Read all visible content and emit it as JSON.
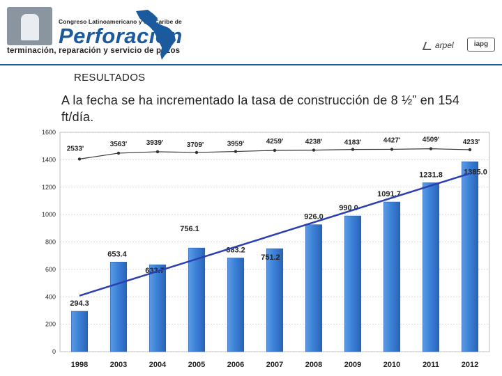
{
  "header": {
    "conference": "Congreso Latinoamericano y del Caribe de",
    "brand": "Perforación",
    "subtitle": "terminación, reparación y servicio de pozos",
    "sponsor_1": "arpel",
    "sponsor_2": "iapg"
  },
  "section_title": "RESULTADOS",
  "body_text": "A la fecha se ha incrementado la tasa de construcción de 8 ½” en 154 ft/día.",
  "colors": {
    "bar": "#3a7fd5",
    "trend": "#2a3fb0",
    "top_line": "#333333",
    "brand": "#1b5a9d"
  },
  "chart_data": {
    "type": "bar",
    "categories": [
      "1998",
      "2003",
      "2004",
      "2005",
      "2006",
      "2007",
      "2008",
      "2009",
      "2010",
      "2011",
      "2012"
    ],
    "values": [
      294.3,
      653.4,
      633.7,
      756.1,
      683.2,
      751.2,
      926.0,
      990.0,
      1091.7,
      1231.8,
      1385.0
    ],
    "value_labels": [
      "294.3",
      "653.4",
      "633.7",
      "756.1",
      "683.2",
      "751.2",
      "926.0",
      "990.0",
      "1091.7",
      "1231.8",
      "1385.0"
    ],
    "ylim": [
      0,
      1600
    ],
    "yticks": [
      "0",
      "200",
      "400",
      "600",
      "800",
      "1000",
      "1200",
      "1400",
      "1600"
    ],
    "depth_series": {
      "values": [
        1405,
        1448,
        1458,
        1453,
        1460,
        1468,
        1470,
        1475,
        1476,
        1480,
        1473
      ],
      "labels": [
        "2533'",
        "3563'",
        "3939'",
        "3709'",
        "3959'",
        "4259'",
        "4238'",
        "4183'",
        "4427'",
        "4509'",
        "4233'"
      ]
    },
    "trendline": {
      "start": 408,
      "end": 1300
    },
    "grid": true,
    "legend": "none"
  }
}
